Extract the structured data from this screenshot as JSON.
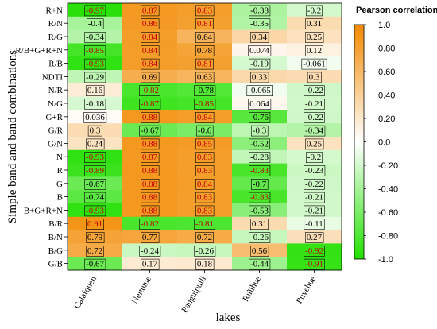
{
  "chart_data": {
    "type": "heatmap",
    "xlabel": "lakes",
    "ylabel": "Simple band and band combinations",
    "colorbar_title": "Pearson correlation",
    "colorbar_ticks": [
      "1.0",
      "0.80",
      "0.60",
      "0.40",
      "0.20",
      "0.0",
      "-0.20",
      "-0.40",
      "-0.60",
      "-0.80",
      "-1.0"
    ],
    "color_range": [
      -1,
      1
    ],
    "colors": {
      "positive": "#f28a00",
      "neutral": "#ffffff",
      "negative": "#22e000"
    },
    "columns": [
      "Calafquen",
      "Neltume",
      "Panguipulli",
      "Riñihue",
      "Puyehue"
    ],
    "rows": [
      {
        "label": "R+N",
        "values": [
          -0.97,
          0.87,
          0.83,
          -0.38,
          -0.2
        ]
      },
      {
        "label": "R/N",
        "values": [
          -0.4,
          0.86,
          0.81,
          -0.35,
          0.31
        ]
      },
      {
        "label": "R/G",
        "values": [
          -0.34,
          0.84,
          0.64,
          0.34,
          0.25
        ]
      },
      {
        "label": "R/B+G+R+N",
        "values": [
          -0.85,
          0.84,
          0.78,
          0.074,
          0.12
        ]
      },
      {
        "label": "R/B",
        "values": [
          -0.93,
          0.84,
          0.81,
          -0.19,
          -0.061
        ]
      },
      {
        "label": "NDTI",
        "values": [
          -0.29,
          0.69,
          0.63,
          0.33,
          0.3
        ]
      },
      {
        "label": "N/R",
        "values": [
          0.16,
          -0.82,
          -0.78,
          -0.065,
          -0.22
        ]
      },
      {
        "label": "N/G",
        "values": [
          -0.18,
          -0.87,
          -0.85,
          0.064,
          -0.21
        ]
      },
      {
        "label": "G+R",
        "values": [
          0.036,
          0.88,
          0.84,
          -0.76,
          -0.22
        ]
      },
      {
        "label": "G/R",
        "values": [
          0.3,
          -0.67,
          -0.6,
          -0.3,
          -0.34
        ]
      },
      {
        "label": "G/N",
        "values": [
          0.24,
          0.88,
          0.85,
          -0.52,
          0.25
        ]
      },
      {
        "label": "N",
        "values": [
          -0.93,
          0.87,
          0.83,
          -0.28,
          -0.2
        ]
      },
      {
        "label": "R",
        "values": [
          -0.89,
          0.88,
          0.83,
          -0.83,
          -0.23
        ]
      },
      {
        "label": "G",
        "values": [
          -0.67,
          0.88,
          0.84,
          -0.7,
          -0.22
        ]
      },
      {
        "label": "B",
        "values": [
          -0.74,
          0.88,
          0.83,
          -0.83,
          -0.21
        ]
      },
      {
        "label": "B+G+R+N",
        "values": [
          -0.93,
          0.88,
          0.83,
          -0.53,
          -0.21
        ]
      },
      {
        "label": "B/R",
        "values": [
          0.91,
          -0.82,
          -0.81,
          0.31,
          -0.11
        ]
      },
      {
        "label": "B/N",
        "values": [
          0.79,
          0.77,
          0.72,
          -0.26,
          0.27
        ]
      },
      {
        "label": "B/G",
        "values": [
          0.72,
          -0.24,
          -0.26,
          0.56,
          -0.92
        ]
      },
      {
        "label": "G/B",
        "values": [
          -0.67,
          0.17,
          0.18,
          -0.44,
          -0.91
        ]
      }
    ]
  }
}
